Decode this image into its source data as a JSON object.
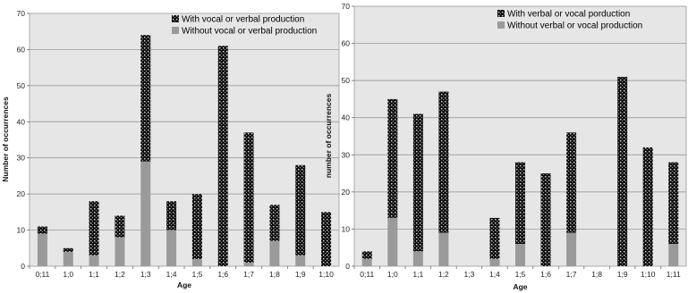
{
  "chart_data": [
    {
      "type": "bar",
      "stacked": true,
      "title": "",
      "xlabel": "Age",
      "ylabel": "Number of occurrences",
      "ylim": [
        0,
        70
      ],
      "yticks": [
        0,
        10,
        20,
        30,
        40,
        50,
        60,
        70
      ],
      "grid": true,
      "legend_position": "top-right",
      "categories": [
        "0;11",
        "1;0",
        "1;1",
        "1;2",
        "1;3",
        "1;4",
        "1;5",
        "1;6",
        "1;7",
        "1;8",
        "1;9",
        "1;10"
      ],
      "series": [
        {
          "name": "Without vocal or verbal production",
          "color": "#9a9a9a",
          "pattern": "solid",
          "values": [
            9,
            4,
            3,
            8,
            29,
            10,
            2,
            0,
            1,
            7,
            3,
            0
          ]
        },
        {
          "name": "With vocal or verbal production",
          "color": "#1a1a1a",
          "pattern": "dotted",
          "values": [
            2,
            1,
            15,
            6,
            35,
            8,
            18,
            61,
            36,
            10,
            25,
            15
          ]
        }
      ]
    },
    {
      "type": "bar",
      "stacked": true,
      "title": "",
      "xlabel": "Age",
      "ylabel": "number of occurrences",
      "ylim": [
        0,
        70
      ],
      "yticks": [
        0,
        10,
        20,
        30,
        40,
        50,
        60,
        70
      ],
      "grid": true,
      "legend_position": "top-right",
      "categories": [
        "0;11",
        "1;0",
        "1;1",
        "1;2",
        "1;3",
        "1;4",
        "1;5",
        "1;6",
        "1;7",
        "1;8",
        "1;9",
        "1;10",
        "1;11"
      ],
      "series": [
        {
          "name": "Without verbal or vocal production",
          "color": "#9a9a9a",
          "pattern": "solid",
          "values": [
            2,
            13,
            4,
            9,
            0,
            2,
            6,
            0,
            9,
            0,
            0,
            0,
            6
          ]
        },
        {
          "name": "With verbal or vocal porduction",
          "color": "#1a1a1a",
          "pattern": "dotted",
          "values": [
            2,
            32,
            37,
            38,
            0,
            11,
            22,
            25,
            27,
            0,
            51,
            32,
            22
          ]
        }
      ]
    }
  ]
}
